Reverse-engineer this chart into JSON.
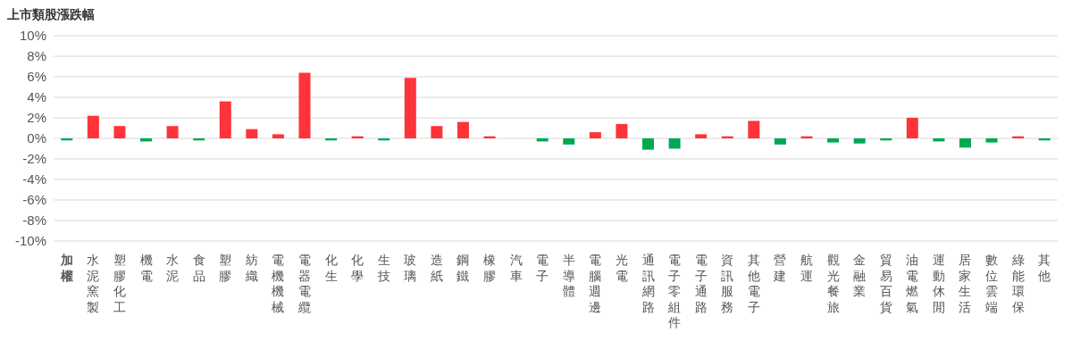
{
  "chart_data": {
    "type": "bar",
    "title": "上市類股漲跌幅",
    "categories": [
      "加權",
      "水泥窯製",
      "塑膠化工",
      "機電",
      "水泥",
      "食品",
      "塑膠",
      "紡織",
      "電機機械",
      "電器電纜",
      "化生",
      "化學",
      "生技",
      "玻璃",
      "造紙",
      "鋼鐵",
      "橡膠",
      "汽車",
      "電子",
      "半導體",
      "電腦週邊",
      "光電",
      "通訊網路",
      "電子零組件",
      "電子通路",
      "資訊服務",
      "其他電子",
      "營建",
      "航運",
      "觀光餐旅",
      "金融業",
      "貿易百貨",
      "油電燃氣",
      "運動休閒",
      "居家生活",
      "數位雲端",
      "綠能環保",
      "其他"
    ],
    "values": [
      -0.2,
      2.2,
      1.2,
      -0.3,
      1.2,
      -0.2,
      3.6,
      0.9,
      0.4,
      6.4,
      -0.2,
      0.2,
      -0.2,
      5.9,
      1.2,
      1.6,
      0.2,
      0,
      -0.3,
      -0.6,
      0.6,
      1.4,
      -1.1,
      -1.0,
      0.4,
      0.2,
      1.7,
      -0.6,
      0.2,
      -0.4,
      -0.5,
      -0.2,
      2.0,
      -0.3,
      -0.9,
      -0.4,
      0.2,
      -0.2
    ],
    "colors": [
      "#00a854",
      "#ff333a",
      "#ff333a",
      "#00a854",
      "#ff333a",
      "#00a854",
      "#ff333a",
      "#ff333a",
      "#ff333a",
      "#ff333a",
      "#00a854",
      "#ff333a",
      "#00a854",
      "#ff333a",
      "#ff333a",
      "#ff333a",
      "#ff333a",
      "#ff333a",
      "#00a854",
      "#00a854",
      "#ff333a",
      "#ff333a",
      "#00a854",
      "#00a854",
      "#ff333a",
      "#ff333a",
      "#ff333a",
      "#00a854",
      "#ff333a",
      "#00a854",
      "#00a854",
      "#00a854",
      "#ff333a",
      "#00a854",
      "#00a854",
      "#00a854",
      "#ff333a",
      "#00a854"
    ],
    "ylim": [
      -10,
      10
    ],
    "yticks": [
      {
        "value": -10,
        "label": "-10%"
      },
      {
        "value": -8,
        "label": "-8%"
      },
      {
        "value": -6,
        "label": "-6%"
      },
      {
        "value": -4,
        "label": "-4%"
      },
      {
        "value": -2,
        "label": "-2%"
      },
      {
        "value": 0,
        "label": "0%"
      },
      {
        "value": 2,
        "label": "2%"
      },
      {
        "value": 4,
        "label": "4%"
      },
      {
        "value": 6,
        "label": "6%"
      },
      {
        "value": 8,
        "label": "8%"
      },
      {
        "value": 10,
        "label": "10%"
      }
    ],
    "grid": "y",
    "legend": false
  }
}
